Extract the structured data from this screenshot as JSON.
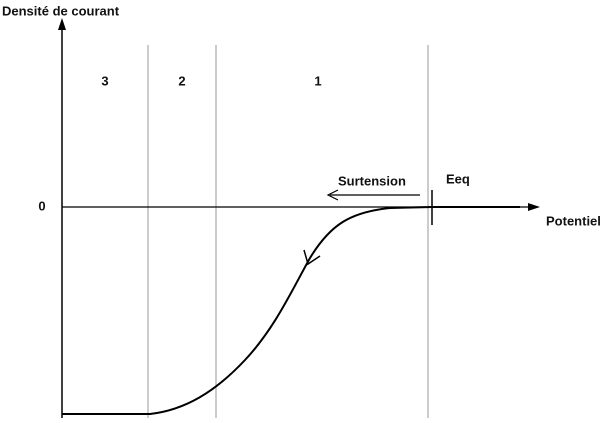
{
  "axes": {
    "y_label": "Densité de courant",
    "x_label": "Potentiel",
    "zero_label": "0"
  },
  "zones": [
    "3",
    "2",
    "1"
  ],
  "annotations": {
    "overpotential": "Surtension",
    "equilibrium": "Eeq"
  }
}
